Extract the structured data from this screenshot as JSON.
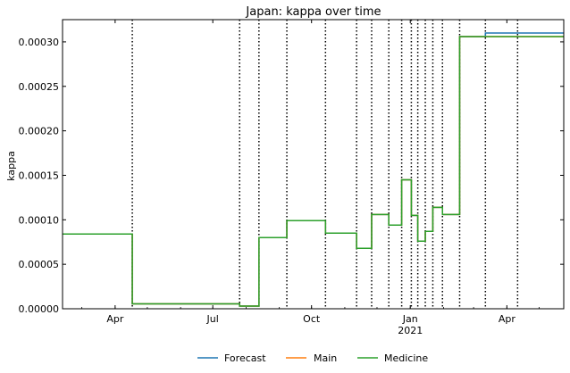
{
  "chart_data": {
    "type": "line",
    "title": "Japan: kappa over time",
    "xlabel": "",
    "ylabel": "kappa",
    "x_range": [
      "2020-02-12",
      "2021-05-24"
    ],
    "ylim": [
      0,
      0.000325
    ],
    "y_ticks": [
      "0.00000",
      "0.00005",
      "0.00010",
      "0.00015",
      "0.00020",
      "0.00025",
      "0.00030"
    ],
    "x_ticks": [
      {
        "date": "2020-04-01",
        "label": "Apr",
        "sublabel": ""
      },
      {
        "date": "2020-07-01",
        "label": "Jul",
        "sublabel": ""
      },
      {
        "date": "2020-10-01",
        "label": "Oct",
        "sublabel": ""
      },
      {
        "date": "2021-01-01",
        "label": "Jan",
        "sublabel": "2021"
      },
      {
        "date": "2021-04-01",
        "label": "Apr",
        "sublabel": ""
      }
    ],
    "change_points": [
      "2020-04-17",
      "2020-07-26",
      "2020-08-13",
      "2020-09-08",
      "2020-10-14",
      "2020-11-12",
      "2020-11-26",
      "2020-12-12",
      "2020-12-24",
      "2021-01-02",
      "2021-01-08",
      "2021-01-15",
      "2021-01-22",
      "2021-01-31",
      "2021-02-16",
      "2021-03-12",
      "2021-04-11"
    ],
    "series": [
      {
        "name": "Forecast",
        "color": "#1f77b4",
        "x": [
          "2020-02-12",
          "2020-04-17",
          "2020-07-26",
          "2020-08-13",
          "2020-09-08",
          "2020-10-14",
          "2020-11-12",
          "2020-11-26",
          "2020-12-12",
          "2020-12-24",
          "2021-01-02",
          "2021-01-08",
          "2021-01-15",
          "2021-01-22",
          "2021-01-31",
          "2021-02-16",
          "2021-03-12",
          "2021-05-24"
        ],
        "y": [
          8.4e-05,
          5.5e-06,
          3e-06,
          8e-05,
          9.9e-05,
          8.5e-05,
          6.8e-05,
          0.000106,
          9.4e-05,
          0.000145,
          0.000105,
          7.6e-05,
          8.7e-05,
          0.000114,
          0.000106,
          0.000306,
          0.00031,
          0.00031
        ]
      },
      {
        "name": "Main",
        "color": "#ff7f0e",
        "x": [
          "2020-02-12",
          "2020-04-17",
          "2020-07-26",
          "2020-08-13",
          "2020-09-08",
          "2020-10-14",
          "2020-11-12",
          "2020-11-26",
          "2020-12-12",
          "2020-12-24",
          "2021-01-02",
          "2021-01-08",
          "2021-01-15",
          "2021-01-22",
          "2021-01-31",
          "2021-02-16",
          "2021-05-24"
        ],
        "y": [
          8.4e-05,
          5.5e-06,
          3e-06,
          8e-05,
          9.9e-05,
          8.5e-05,
          6.8e-05,
          0.000106,
          9.4e-05,
          0.000145,
          0.000105,
          7.6e-05,
          8.7e-05,
          0.000114,
          0.000106,
          0.000306,
          0.000306
        ]
      },
      {
        "name": "Medicine",
        "color": "#2ca02c",
        "x": [
          "2020-02-12",
          "2020-04-17",
          "2020-07-26",
          "2020-08-13",
          "2020-09-08",
          "2020-10-14",
          "2020-11-12",
          "2020-11-26",
          "2020-12-12",
          "2020-12-24",
          "2021-01-02",
          "2021-01-08",
          "2021-01-15",
          "2021-01-22",
          "2021-01-31",
          "2021-02-16",
          "2021-05-24"
        ],
        "y": [
          8.4e-05,
          5.5e-06,
          3e-06,
          8e-05,
          9.9e-05,
          8.5e-05,
          6.8e-05,
          0.000106,
          9.4e-05,
          0.000145,
          0.000105,
          7.6e-05,
          8.7e-05,
          0.000114,
          0.000106,
          0.000306,
          0.000306
        ]
      }
    ],
    "grid": false,
    "legend_position": "bottom-center"
  }
}
